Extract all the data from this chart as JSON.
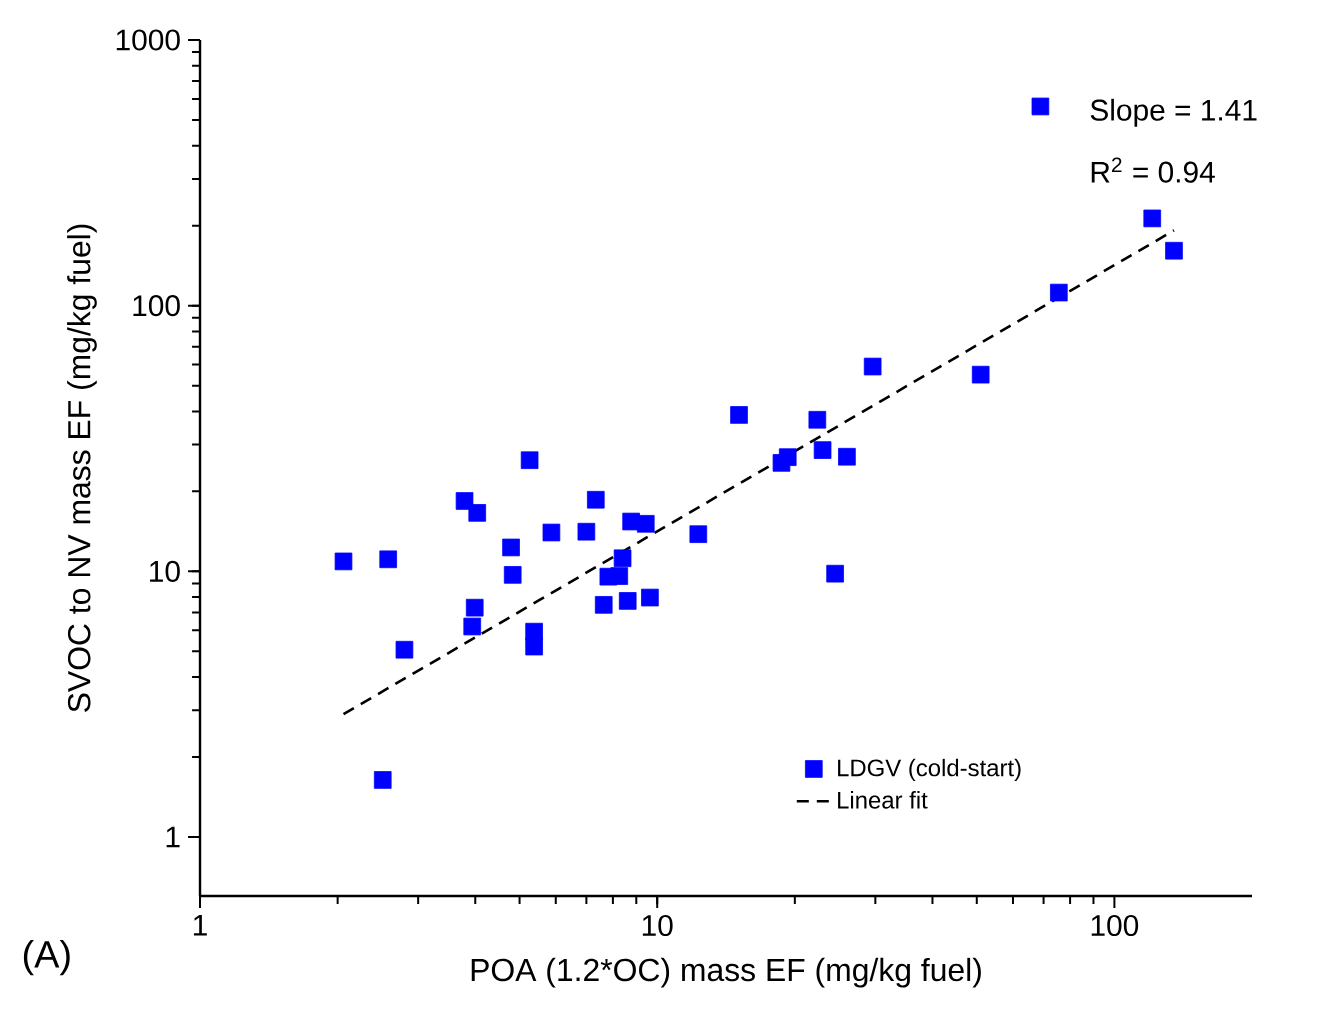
{
  "chart_data": {
    "type": "scatter",
    "xlabel": "POA (1.2*OC) mass EF (mg/kg fuel)",
    "ylabel": "SVOC to NV mass EF (mg/kg fuel)",
    "log": "xy",
    "xlim": [
      1,
      200
    ],
    "ylim": [
      0.6,
      1000
    ],
    "xticks": [
      1,
      10,
      100
    ],
    "yticks": [
      1,
      10,
      100,
      1000
    ],
    "grid": false,
    "legend": "bottom right",
    "marker": "square",
    "series": [
      {
        "name": "LDGV (cold-start)",
        "color": "#0000ff",
        "x": [
          2.06,
          2.58,
          2.8,
          2.51,
          3.79,
          4.04,
          3.99,
          3.94,
          4.79,
          4.83,
          5.26,
          5.38,
          5.38,
          5.87,
          7.0,
          7.34,
          8.77,
          9.44,
          8.4,
          7.82,
          8.26,
          7.64,
          8.62,
          9.64,
          12.3,
          68.9,
          121,
          135,
          75.6,
          29.6,
          51,
          15.1,
          22.4,
          23.0,
          26.0,
          18.7,
          19.3,
          24.5
        ],
        "values": [
          10.9,
          11.1,
          5.07,
          1.64,
          18.4,
          16.6,
          7.3,
          6.2,
          12.3,
          9.7,
          26.2,
          5.93,
          5.21,
          14.0,
          14.1,
          18.6,
          15.4,
          15.1,
          11.2,
          9.55,
          9.6,
          7.48,
          7.74,
          7.97,
          13.8,
          562,
          213,
          161,
          112,
          59,
          55,
          38.8,
          37.2,
          28.6,
          27.0,
          25.6,
          26.9,
          9.8
        ]
      },
      {
        "name": "Linear fit",
        "type": "line",
        "color": "#000000",
        "line_style": "dashed",
        "marker": "none",
        "x": [
          2.06,
          135
        ],
        "values": [
          2.9,
          192
        ]
      }
    ],
    "annotations": [
      "Slope = 1.41",
      "R$^{2}$ = 0.94",
      "(A)"
    ]
  }
}
